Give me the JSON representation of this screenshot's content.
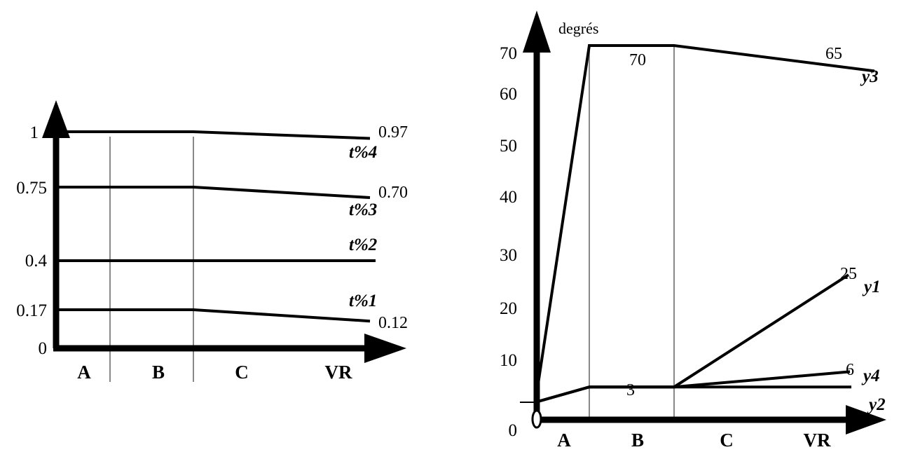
{
  "chart_data": [
    {
      "type": "line",
      "categories": [
        "A",
        "B",
        "C",
        "VR"
      ],
      "y_ticks": [
        "0",
        "0.17",
        "0.4",
        "0.75",
        "1"
      ],
      "series": [
        {
          "name": "t%4",
          "values": [
            1,
            1,
            1,
            0.97
          ],
          "end_label": "0.97"
        },
        {
          "name": "t%3",
          "values": [
            0.75,
            0.75,
            0.75,
            0.7
          ],
          "end_label": "0.70"
        },
        {
          "name": "t%2",
          "values": [
            0.4,
            0.4,
            0.4,
            0.4
          ],
          "end_label": ""
        },
        {
          "name": "t%1",
          "values": [
            0.17,
            0.17,
            0.17,
            0.12
          ],
          "end_label": "0.12"
        }
      ]
    },
    {
      "type": "line",
      "ylabel": "degrés",
      "categories": [
        "A",
        "B",
        "C",
        "VR"
      ],
      "y_ticks": [
        "0",
        "10",
        "20",
        "30",
        "40",
        "50",
        "60",
        "70"
      ],
      "ylim": [
        0,
        70
      ],
      "series": [
        {
          "name": "y3",
          "values": [
            0,
            70,
            70,
            65
          ],
          "labels": [
            {
              "text": "70",
              "at": "B"
            },
            {
              "text": "65",
              "at": "VR"
            }
          ]
        },
        {
          "name": "y1",
          "values": [
            0,
            3,
            3,
            25
          ],
          "labels": [
            {
              "text": "25",
              "at": "VR"
            }
          ]
        },
        {
          "name": "y4",
          "values": [
            0,
            3,
            3,
            6
          ],
          "labels": [
            {
              "text": "6",
              "at": "VR"
            }
          ]
        },
        {
          "name": "y2",
          "values": [
            0,
            3,
            3,
            3
          ],
          "labels": [
            {
              "text": "3",
              "at": "B"
            }
          ]
        }
      ]
    }
  ]
}
